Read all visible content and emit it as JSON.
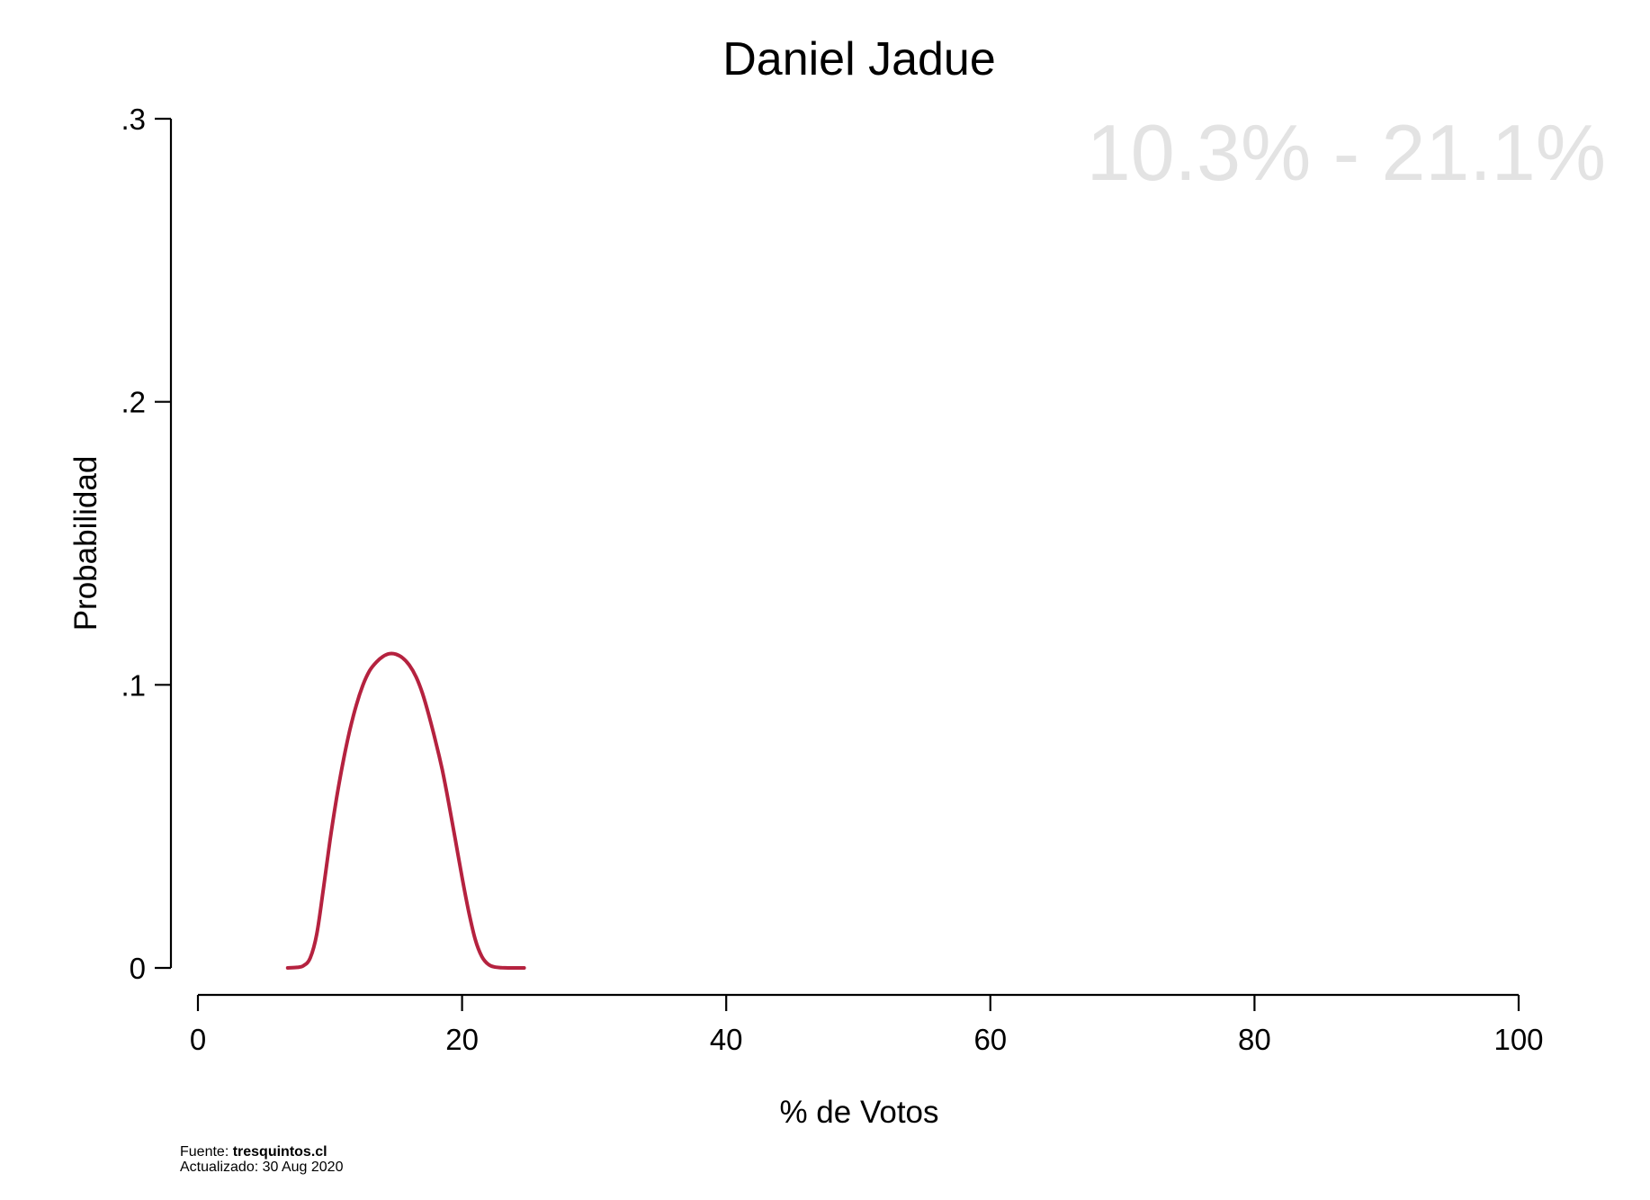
{
  "chart_data": {
    "type": "line",
    "title": "Daniel Jadue",
    "annotation": "10.3% - 21.1%",
    "xlabel": "% de Votos",
    "ylabel": "Probabilidad",
    "xlim": [
      0,
      100
    ],
    "ylim": [
      0,
      0.3
    ],
    "x_ticks": [
      0,
      20,
      40,
      60,
      80,
      100
    ],
    "x_tick_labels": [
      "0",
      "20",
      "40",
      "60",
      "80",
      "100"
    ],
    "y_ticks": [
      0,
      0.1,
      0.2,
      0.3
    ],
    "y_tick_labels": [
      "0",
      ".1",
      ".2",
      ".3"
    ],
    "grid": false,
    "legend": "none",
    "series": [
      {
        "color": "#b5223f",
        "x": [
          6.8,
          7.5,
          8.0,
          8.5,
          9.0,
          9.5,
          10.0,
          10.5,
          11.0,
          11.5,
          12.0,
          12.5,
          13.0,
          13.5,
          14.0,
          14.5,
          15.0,
          15.5,
          16.0,
          16.5,
          17.0,
          17.5,
          18.0,
          18.5,
          19.0,
          19.5,
          20.0,
          20.5,
          21.0,
          21.5,
          22.0,
          22.5,
          23.0,
          23.5,
          24.0,
          24.7
        ],
        "y": [
          0.0,
          0.0002,
          0.0008,
          0.0035,
          0.012,
          0.028,
          0.045,
          0.06,
          0.073,
          0.084,
          0.093,
          0.1,
          0.105,
          0.108,
          0.11,
          0.111,
          0.1108,
          0.1095,
          0.107,
          0.103,
          0.097,
          0.089,
          0.08,
          0.07,
          0.058,
          0.045,
          0.032,
          0.02,
          0.01,
          0.004,
          0.0012,
          0.0003,
          0.0001,
          0.0,
          0.0,
          0.0
        ]
      }
    ]
  },
  "footer": {
    "source_label": "Fuente: ",
    "source_value": "tresquintos.cl",
    "updated": "Actualizado: 30 Aug 2020"
  }
}
